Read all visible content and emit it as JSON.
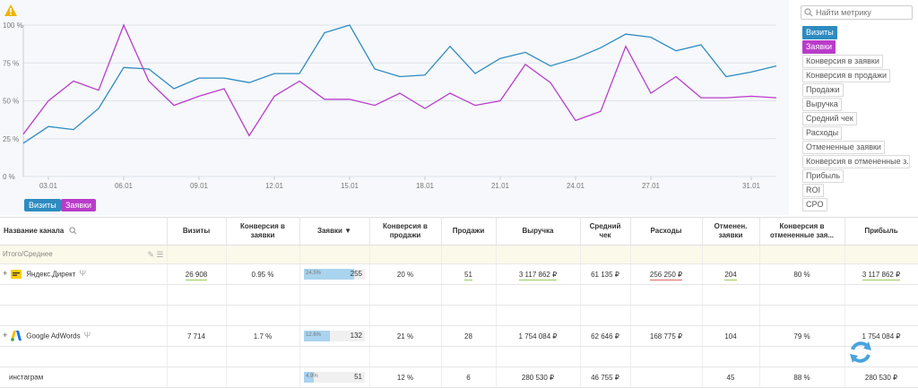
{
  "colors": {
    "visits": "#2e8bc0",
    "orders": "#b93cc9",
    "grid": "#dfe3ea"
  },
  "chart_data": {
    "type": "line",
    "x": [
      "02.01",
      "03.01",
      "04.01",
      "05.01",
      "06.01",
      "07.01",
      "08.01",
      "09.01",
      "10.01",
      "11.01",
      "12.01",
      "13.01",
      "14.01",
      "15.01",
      "16.01",
      "17.01",
      "18.01",
      "19.01",
      "20.01",
      "21.01",
      "22.01",
      "23.01",
      "24.01",
      "25.01",
      "26.01",
      "27.01",
      "28.01",
      "29.01",
      "30.01",
      "31.01",
      "01.02"
    ],
    "x_tick_labels": [
      "03.01",
      "06.01",
      "09.01",
      "12.01",
      "15.01",
      "18.01",
      "21.01",
      "24.01",
      "27.01",
      "31.01"
    ],
    "y_tick_labels": [
      "100 %",
      "75 %",
      "50 %",
      "25 %",
      "0 %"
    ],
    "ylim": [
      0,
      100
    ],
    "grid": true,
    "series": [
      {
        "name": "Визиты",
        "color": "#2e8bc0",
        "values": [
          22,
          33,
          31,
          45,
          72,
          71,
          58,
          65,
          65,
          62,
          68,
          68,
          95,
          100,
          71,
          66,
          67,
          86,
          68,
          78,
          82,
          73,
          78,
          85,
          94,
          92,
          83,
          87,
          66,
          69,
          73
        ]
      },
      {
        "name": "Заявки",
        "color": "#b93cc9",
        "values": [
          28,
          50,
          63,
          57,
          100,
          63,
          47,
          53,
          58,
          27,
          53,
          63,
          51,
          51,
          47,
          55,
          45,
          55,
          47,
          50,
          74,
          62,
          37,
          43,
          86,
          55,
          66,
          52,
          52,
          53,
          52
        ]
      }
    ]
  },
  "legend": {
    "visits": "Визиты",
    "orders": "Заявки"
  },
  "sidebar": {
    "search_placeholder": "Найти метрику",
    "metrics": [
      "Визиты",
      "Заявки",
      "Конверсия в заявки",
      "Конверсия в продажи",
      "Продажи",
      "Выручка",
      "Средний чек",
      "Расходы",
      "Отмененные заявки",
      "Конверсия в отмененные з...",
      "Прибыль",
      "ROI",
      "CPO"
    ]
  },
  "table": {
    "headers": [
      "Название канала",
      "Визиты",
      "Конверсия в заявки",
      "Заявки ▼",
      "Конверсия в продажи",
      "Продажи",
      "Выручка",
      "Средний чек",
      "Расходы",
      "Отменен. заявки",
      "Конверсия в отмененные зая...",
      "Прибыль"
    ],
    "total_label": "Итого/Среднее",
    "rows": [
      {
        "name": "Яндекс.Директ",
        "visits": "26 908",
        "conv": "0.95 %",
        "orders_pct": "24.5%",
        "orders_fill": 0.83,
        "orders": "255",
        "conv_sales": "20 %",
        "sales": "51",
        "revenue": "3 117 862 ₽",
        "avg": "61 135 ₽",
        "costs": "256 250 ₽",
        "cancel": "204",
        "conv_cancel": "80 %",
        "profit": "3 117 862 ₽"
      },
      {
        "name": "Google AdWords",
        "visits": "7 714",
        "conv": "1.7 %",
        "orders_pct": "12.6%",
        "orders_fill": 0.42,
        "orders": "132",
        "conv_sales": "21 %",
        "sales": "28",
        "revenue": "1 754 084 ₽",
        "avg": "62 646 ₽",
        "costs": "168 775 ₽",
        "cancel": "104",
        "conv_cancel": "79 %",
        "profit": "1 754 084 ₽"
      },
      {
        "name": "инстаграм",
        "visits": "",
        "conv": "",
        "orders_pct": "4.9%",
        "orders_fill": 0.16,
        "orders": "51",
        "conv_sales": "12 %",
        "sales": "6",
        "revenue": "280 530 ₽",
        "avg": "46 755 ₽",
        "costs": "",
        "cancel": "45",
        "conv_cancel": "88 %",
        "profit": "280 530 ₽"
      }
    ]
  }
}
